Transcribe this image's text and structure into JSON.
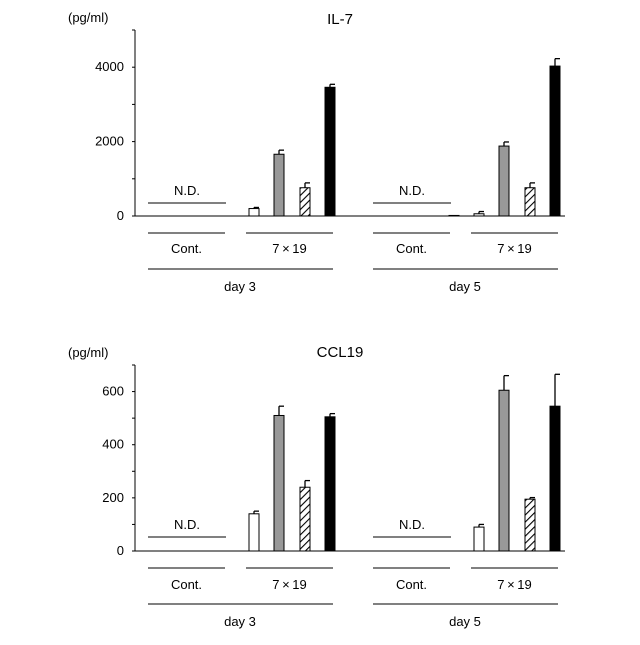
{
  "chart_data": [
    {
      "type": "bar",
      "title": "IL-7",
      "unit_label": "(pg/ml)",
      "ylim": [
        0,
        5000
      ],
      "yticks": [
        0,
        2000,
        4000
      ],
      "minor_tick_step": 1000,
      "grid": false,
      "not_detected_label": "N.D.",
      "group_labels": [
        "Cont.",
        "7 × 19",
        "Cont.",
        "7 × 19"
      ],
      "day_labels": [
        "day 3",
        "day 5"
      ],
      "series_styles": [
        {
          "fill": "#ffffff",
          "pattern": "none"
        },
        {
          "fill": "#999999",
          "pattern": "none"
        },
        {
          "fill": "#ffffff",
          "pattern": "hatch"
        },
        {
          "fill": "#000000",
          "pattern": "none"
        }
      ],
      "days": [
        {
          "control": {
            "not_detected": true,
            "values": [
              0,
              0,
              0,
              0
            ],
            "errors": [
              0,
              0,
              0,
              0
            ]
          },
          "treated": {
            "values": [
              200,
              1660,
              760,
              3460
            ],
            "errors": [
              30,
              110,
              130,
              80
            ]
          }
        },
        {
          "control": {
            "not_detected": true,
            "values": [
              0,
              0,
              0,
              15
            ],
            "errors": [
              0,
              0,
              0,
              0
            ]
          },
          "treated": {
            "values": [
              60,
              1880,
              760,
              4030
            ],
            "errors": [
              60,
              110,
              130,
              200
            ]
          }
        }
      ]
    },
    {
      "type": "bar",
      "title": "CCL19",
      "unit_label": "(pg/ml)",
      "ylim": [
        0,
        700
      ],
      "yticks": [
        0,
        200,
        400,
        600
      ],
      "minor_tick_step": 100,
      "grid": false,
      "not_detected_label": "N.D.",
      "group_labels": [
        "Cont.",
        "7 × 19",
        "Cont.",
        "7 × 19"
      ],
      "day_labels": [
        "day 3",
        "day 5"
      ],
      "series_styles": [
        {
          "fill": "#ffffff",
          "pattern": "none"
        },
        {
          "fill": "#999999",
          "pattern": "none"
        },
        {
          "fill": "#ffffff",
          "pattern": "hatch"
        },
        {
          "fill": "#000000",
          "pattern": "none"
        }
      ],
      "days": [
        {
          "control": {
            "not_detected": true,
            "values": [
              0,
              0,
              0,
              0
            ],
            "errors": [
              0,
              0,
              0,
              0
            ]
          },
          "treated": {
            "values": [
              140,
              510,
              240,
              505
            ],
            "errors": [
              10,
              35,
              25,
              12
            ]
          }
        },
        {
          "control": {
            "not_detected": true,
            "values": [
              0,
              0,
              0,
              0
            ],
            "errors": [
              0,
              0,
              0,
              0
            ]
          },
          "treated": {
            "values": [
              90,
              605,
              195,
              545
            ],
            "errors": [
              10,
              55,
              6,
              120
            ]
          }
        }
      ]
    }
  ]
}
